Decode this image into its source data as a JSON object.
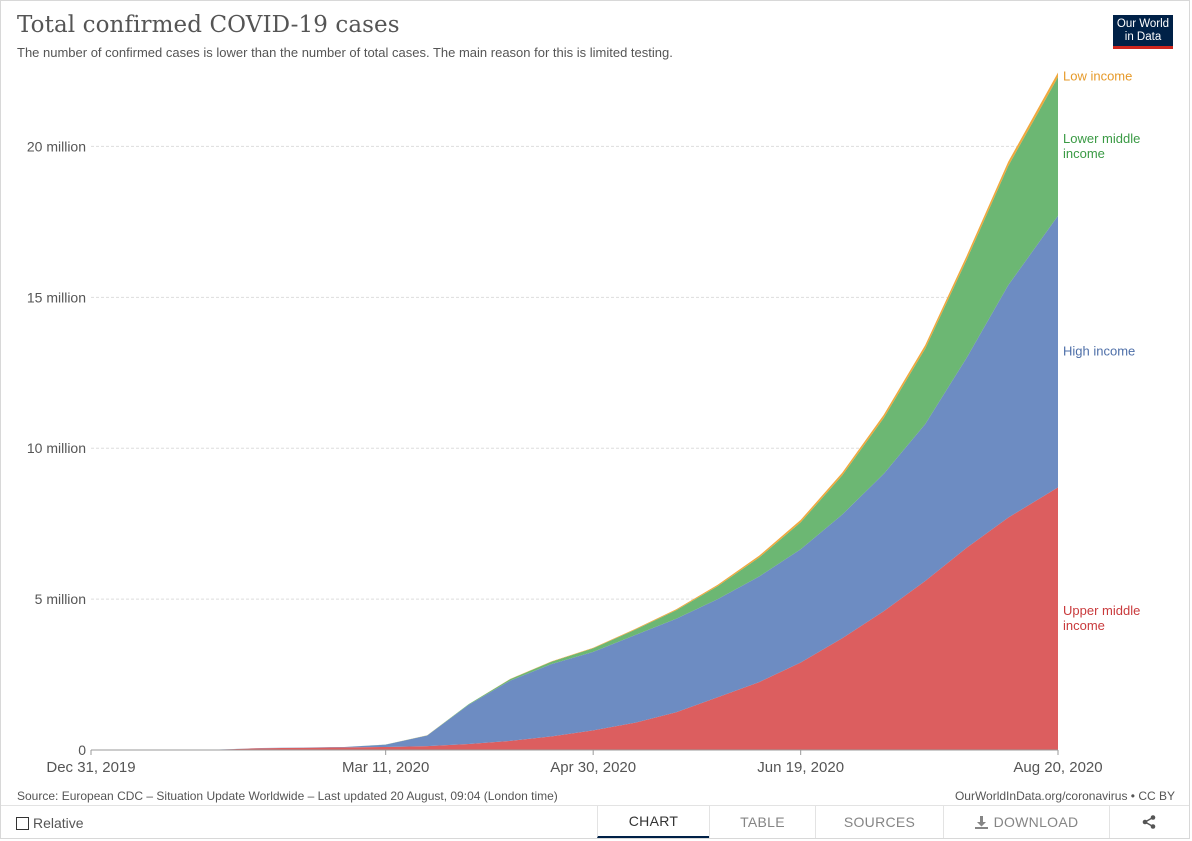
{
  "header": {
    "title": "Total confirmed COVID-19 cases",
    "subtitle": "The number of confirmed cases is lower than the number of total cases. The main reason for this is limited testing.",
    "logo_line1": "Our World",
    "logo_line2": "in Data"
  },
  "footer": {
    "source": "Source: European CDC – Situation Update Worldwide – Last updated 20 August, 09:04 (London time)",
    "credit": "OurWorldInData.org/coronavirus • CC BY",
    "relative_label": "Relative",
    "relative_checked": false,
    "tabs": [
      {
        "label": "CHART",
        "active": true,
        "icon": ""
      },
      {
        "label": "TABLE",
        "active": false,
        "icon": ""
      },
      {
        "label": "SOURCES",
        "active": false,
        "icon": ""
      },
      {
        "label": "DOWNLOAD",
        "active": false,
        "icon": "download-icon"
      },
      {
        "label": "",
        "active": false,
        "icon": "share-icon"
      }
    ]
  },
  "chart_data": {
    "type": "area",
    "stacked": true,
    "x_dates": [
      "2019-12-31",
      "2020-01-10",
      "2020-01-20",
      "2020-01-30",
      "2020-02-10",
      "2020-02-20",
      "2020-03-01",
      "2020-03-11",
      "2020-03-21",
      "2020-03-31",
      "2020-04-10",
      "2020-04-20",
      "2020-04-30",
      "2020-05-10",
      "2020-05-20",
      "2020-05-30",
      "2020-06-09",
      "2020-06-19",
      "2020-06-29",
      "2020-07-09",
      "2020-07-19",
      "2020-07-29",
      "2020-08-08",
      "2020-08-20"
    ],
    "xticks": [
      {
        "date": "2019-12-31",
        "label": "Dec 31, 2019"
      },
      {
        "date": "2020-03-11",
        "label": "Mar 11, 2020"
      },
      {
        "date": "2020-04-30",
        "label": "Apr 30, 2020"
      },
      {
        "date": "2020-06-19",
        "label": "Jun 19, 2020"
      },
      {
        "date": "2020-08-20",
        "label": "Aug 20, 2020"
      }
    ],
    "yticks": [
      {
        "value": 0,
        "label": "0"
      },
      {
        "value": 5000000,
        "label": "5 million"
      },
      {
        "value": 10000000,
        "label": "10 million"
      },
      {
        "value": 15000000,
        "label": "15 million"
      },
      {
        "value": 20000000,
        "label": "20 million"
      }
    ],
    "ylim": [
      0,
      22400000
    ],
    "grid": "horizontal-dashed",
    "legend_placement": "right-inline",
    "series": [
      {
        "name": "Upper middle income",
        "label_lines": [
          "Upper middle",
          "income"
        ],
        "color": "#dc5e5f",
        "values": [
          0,
          0,
          5000,
          10000,
          60000,
          75000,
          85000,
          100000,
          130000,
          200000,
          300000,
          450000,
          650000,
          900000,
          1250000,
          1750000,
          2250000,
          2900000,
          3700000,
          4600000,
          5600000,
          6700000,
          7700000,
          8700000
        ]
      },
      {
        "name": "High income",
        "label_lines": [
          "High income"
        ],
        "color": "#6d8cc2",
        "values": [
          0,
          0,
          1000,
          2000,
          5000,
          7000,
          15000,
          80000,
          350000,
          1300000,
          2000000,
          2400000,
          2600000,
          2900000,
          3100000,
          3250000,
          3500000,
          3750000,
          4100000,
          4550000,
          5200000,
          6300000,
          7700000,
          9000000
        ]
      },
      {
        "name": "Lower middle income",
        "label_lines": [
          "Lower middle",
          "income"
        ],
        "color": "#6cb773",
        "values": [
          0,
          0,
          0,
          0,
          0,
          0,
          0,
          1000,
          5000,
          20000,
          50000,
          80000,
          120000,
          180000,
          280000,
          430000,
          630000,
          900000,
          1300000,
          1850000,
          2500000,
          3250000,
          3950000,
          4600000
        ]
      },
      {
        "name": "Low income",
        "label_lines": [
          "Low income"
        ],
        "color": "#f0a83e",
        "values": [
          0,
          0,
          0,
          0,
          0,
          0,
          0,
          0,
          500,
          2000,
          5000,
          8000,
          15000,
          25000,
          35000,
          45000,
          60000,
          75000,
          90000,
          105000,
          118000,
          130000,
          140000,
          150000
        ]
      }
    ]
  }
}
